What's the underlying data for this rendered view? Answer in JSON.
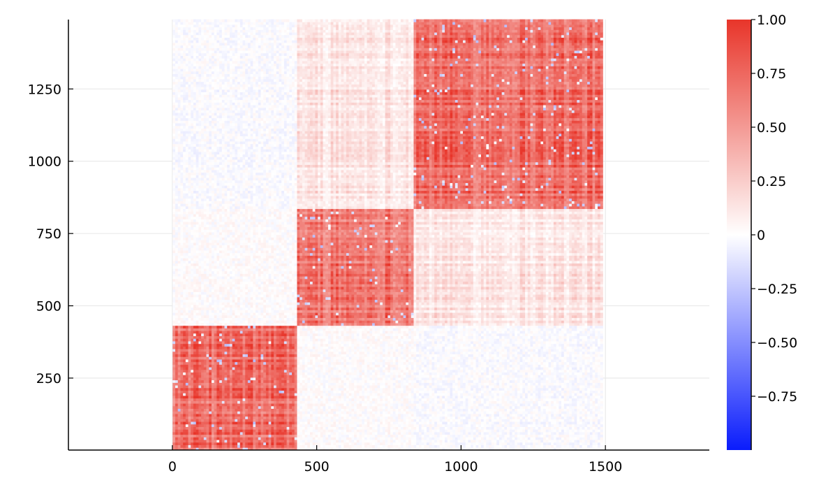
{
  "chart_data": {
    "type": "heatmap",
    "title": "",
    "xlabel": "",
    "ylabel": "",
    "xlim": [
      -360,
      1860
    ],
    "ylim": [
      1,
      1490
    ],
    "matrix_size": 1490,
    "xticks": [
      {
        "value": 0,
        "label": "0"
      },
      {
        "value": 500,
        "label": "500"
      },
      {
        "value": 1000,
        "label": "1000"
      },
      {
        "value": 1500,
        "label": "1500"
      }
    ],
    "yticks": [
      {
        "value": 250,
        "label": "250"
      },
      {
        "value": 500,
        "label": "500"
      },
      {
        "value": 750,
        "label": "750"
      },
      {
        "value": 1000,
        "label": "1000"
      },
      {
        "value": 1250,
        "label": "1250"
      }
    ],
    "grid": true,
    "blocks": [
      {
        "name": "block-1",
        "start": 1,
        "end": 432
      },
      {
        "name": "block-2",
        "start": 433,
        "end": 840
      },
      {
        "name": "block-3",
        "start": 841,
        "end": 1490
      }
    ],
    "block_means": [
      [
        0.85,
        0.02,
        -0.02
      ],
      [
        0.02,
        0.8,
        0.2
      ],
      [
        -0.02,
        0.2,
        0.85
      ]
    ],
    "colorbar": {
      "min": -1.0,
      "max": 1.0,
      "ticks": [
        {
          "value": 1.0,
          "label": "1.00"
        },
        {
          "value": 0.75,
          "label": "0.75"
        },
        {
          "value": 0.5,
          "label": "0.50"
        },
        {
          "value": 0.25,
          "label": "0.25"
        },
        {
          "value": 0.0,
          "label": "0"
        },
        {
          "value": -0.25,
          "label": "−0.25"
        },
        {
          "value": -0.5,
          "label": "−0.50"
        },
        {
          "value": -0.75,
          "label": "−0.75"
        }
      ],
      "colors": {
        "low": "#0a1cfc",
        "mid": "#ffffff",
        "high": "#e8352a"
      }
    }
  }
}
